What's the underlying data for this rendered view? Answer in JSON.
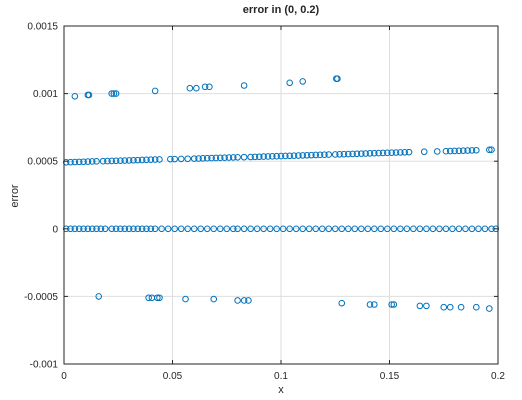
{
  "chart_data": {
    "type": "scatter",
    "title": "error in (0, 0.2)",
    "xlabel": "x",
    "ylabel": "error",
    "xlim": [
      0,
      0.2
    ],
    "ylim": [
      -0.001,
      0.0015
    ],
    "xticks": [
      "0",
      "0.05",
      "0.1",
      "0.15",
      "0.2"
    ],
    "yticks": [
      "-0.001",
      "-0.0005",
      "0",
      "0.0005",
      "0.001",
      "0.0015"
    ],
    "grid": true,
    "marker": "open-circle",
    "marker_color": "#0072BD",
    "series": [
      {
        "points": [
          [
            0.005,
            0.00098
          ],
          [
            0.011,
            0.00099
          ],
          [
            0.0115,
            0.00099
          ],
          [
            0.022,
            0.001
          ],
          [
            0.023,
            0.001
          ],
          [
            0.024,
            0.001
          ],
          [
            0.042,
            0.00102
          ],
          [
            0.058,
            0.00104
          ],
          [
            0.061,
            0.00104
          ],
          [
            0.065,
            0.00105
          ],
          [
            0.067,
            0.00105
          ],
          [
            0.083,
            0.00106
          ],
          [
            0.104,
            0.00108
          ],
          [
            0.11,
            0.00109
          ],
          [
            0.1255,
            0.00111
          ],
          [
            0.126,
            0.00111
          ],
          [
            0.001,
            0.000492
          ],
          [
            0.003,
            0.000493
          ],
          [
            0.005,
            0.000494
          ],
          [
            0.007,
            0.000495
          ],
          [
            0.009,
            0.000496
          ],
          [
            0.011,
            0.000497
          ],
          [
            0.013,
            0.000498
          ],
          [
            0.015,
            0.000499
          ],
          [
            0.018,
            0.0005
          ],
          [
            0.02,
            0.000501
          ],
          [
            0.022,
            0.000502
          ],
          [
            0.024,
            0.000503
          ],
          [
            0.026,
            0.000504
          ],
          [
            0.028,
            0.000505
          ],
          [
            0.03,
            0.000506
          ],
          [
            0.032,
            0.000507
          ],
          [
            0.034,
            0.000508
          ],
          [
            0.036,
            0.000509
          ],
          [
            0.038,
            0.00051
          ],
          [
            0.04,
            0.000511
          ],
          [
            0.042,
            0.000512
          ],
          [
            0.044,
            0.000513
          ],
          [
            0.049,
            0.000515
          ],
          [
            0.051,
            0.000516
          ],
          [
            0.054,
            0.000517
          ],
          [
            0.057,
            0.000518
          ],
          [
            0.06,
            0.000519
          ],
          [
            0.062,
            0.00052
          ],
          [
            0.064,
            0.000521
          ],
          [
            0.066,
            0.000522
          ],
          [
            0.068,
            0.000523
          ],
          [
            0.07,
            0.000524
          ],
          [
            0.072,
            0.000525
          ],
          [
            0.074,
            0.000526
          ],
          [
            0.076,
            0.000527
          ],
          [
            0.078,
            0.000528
          ],
          [
            0.08,
            0.000529
          ],
          [
            0.083,
            0.00053
          ],
          [
            0.086,
            0.000531
          ],
          [
            0.088,
            0.000532
          ],
          [
            0.09,
            0.000533
          ],
          [
            0.092,
            0.000534
          ],
          [
            0.094,
            0.000535
          ],
          [
            0.096,
            0.000536
          ],
          [
            0.098,
            0.000537
          ],
          [
            0.1,
            0.000538
          ],
          [
            0.102,
            0.000539
          ],
          [
            0.104,
            0.00054
          ],
          [
            0.106,
            0.000541
          ],
          [
            0.108,
            0.000542
          ],
          [
            0.11,
            0.000543
          ],
          [
            0.112,
            0.000544
          ],
          [
            0.114,
            0.000545
          ],
          [
            0.116,
            0.000546
          ],
          [
            0.118,
            0.000547
          ],
          [
            0.12,
            0.000548
          ],
          [
            0.122,
            0.000549
          ],
          [
            0.125,
            0.00055
          ],
          [
            0.127,
            0.000551
          ],
          [
            0.129,
            0.000552
          ],
          [
            0.131,
            0.000553
          ],
          [
            0.133,
            0.000554
          ],
          [
            0.135,
            0.000555
          ],
          [
            0.137,
            0.000556
          ],
          [
            0.139,
            0.000557
          ],
          [
            0.141,
            0.000558
          ],
          [
            0.143,
            0.000559
          ],
          [
            0.145,
            0.00056
          ],
          [
            0.147,
            0.000561
          ],
          [
            0.149,
            0.000562
          ],
          [
            0.151,
            0.000563
          ],
          [
            0.153,
            0.000564
          ],
          [
            0.155,
            0.000565
          ],
          [
            0.157,
            0.000566
          ],
          [
            0.159,
            0.000567
          ],
          [
            0.166,
            0.00057
          ],
          [
            0.172,
            0.000572
          ],
          [
            0.176,
            0.000574
          ],
          [
            0.178,
            0.000575
          ],
          [
            0.18,
            0.000576
          ],
          [
            0.182,
            0.000577
          ],
          [
            0.184,
            0.000578
          ],
          [
            0.186,
            0.000579
          ],
          [
            0.188,
            0.00058
          ],
          [
            0.19,
            0.000581
          ],
          [
            0.196,
            0.000584
          ],
          [
            0.197,
            0.000585
          ],
          [
            0.001,
            0
          ],
          [
            0.003,
            0
          ],
          [
            0.005,
            0
          ],
          [
            0.007,
            0
          ],
          [
            0.009,
            0
          ],
          [
            0.011,
            0
          ],
          [
            0.013,
            0
          ],
          [
            0.015,
            0
          ],
          [
            0.017,
            0
          ],
          [
            0.019,
            0
          ],
          [
            0.022,
            0
          ],
          [
            0.024,
            0
          ],
          [
            0.026,
            0
          ],
          [
            0.028,
            0
          ],
          [
            0.03,
            0
          ],
          [
            0.032,
            0
          ],
          [
            0.034,
            0
          ],
          [
            0.036,
            0
          ],
          [
            0.038,
            0
          ],
          [
            0.04,
            0
          ],
          [
            0.042,
            0
          ],
          [
            0.045,
            0
          ],
          [
            0.048,
            0
          ],
          [
            0.051,
            0
          ],
          [
            0.054,
            0
          ],
          [
            0.057,
            0
          ],
          [
            0.06,
            0
          ],
          [
            0.063,
            0
          ],
          [
            0.066,
            0
          ],
          [
            0.069,
            0
          ],
          [
            0.072,
            0
          ],
          [
            0.075,
            0
          ],
          [
            0.078,
            0
          ],
          [
            0.08,
            0
          ],
          [
            0.083,
            0
          ],
          [
            0.086,
            0
          ],
          [
            0.089,
            0
          ],
          [
            0.092,
            0
          ],
          [
            0.095,
            0
          ],
          [
            0.098,
            0
          ],
          [
            0.101,
            0
          ],
          [
            0.104,
            0
          ],
          [
            0.107,
            0
          ],
          [
            0.11,
            0
          ],
          [
            0.113,
            0
          ],
          [
            0.116,
            0
          ],
          [
            0.119,
            0
          ],
          [
            0.122,
            0
          ],
          [
            0.125,
            0
          ],
          [
            0.128,
            0
          ],
          [
            0.131,
            0
          ],
          [
            0.134,
            0
          ],
          [
            0.137,
            0
          ],
          [
            0.14,
            0
          ],
          [
            0.143,
            0
          ],
          [
            0.146,
            0
          ],
          [
            0.149,
            0
          ],
          [
            0.152,
            0
          ],
          [
            0.155,
            0
          ],
          [
            0.158,
            0
          ],
          [
            0.161,
            0
          ],
          [
            0.164,
            0
          ],
          [
            0.167,
            0
          ],
          [
            0.17,
            0
          ],
          [
            0.173,
            0
          ],
          [
            0.176,
            0
          ],
          [
            0.179,
            0
          ],
          [
            0.182,
            0
          ],
          [
            0.185,
            0
          ],
          [
            0.188,
            0
          ],
          [
            0.191,
            0
          ],
          [
            0.194,
            0
          ],
          [
            0.197,
            0
          ],
          [
            0.199,
            0
          ],
          [
            0.016,
            -0.0005
          ],
          [
            0.039,
            -0.00051
          ],
          [
            0.0405,
            -0.00051
          ],
          [
            0.043,
            -0.00051
          ],
          [
            0.044,
            -0.00051
          ],
          [
            0.056,
            -0.00052
          ],
          [
            0.069,
            -0.00052
          ],
          [
            0.08,
            -0.00053
          ],
          [
            0.083,
            -0.00053
          ],
          [
            0.085,
            -0.00053
          ],
          [
            0.128,
            -0.00055
          ],
          [
            0.141,
            -0.00056
          ],
          [
            0.143,
            -0.00056
          ],
          [
            0.151,
            -0.00056
          ],
          [
            0.152,
            -0.00056
          ],
          [
            0.164,
            -0.00057
          ],
          [
            0.167,
            -0.00057
          ],
          [
            0.175,
            -0.00058
          ],
          [
            0.178,
            -0.00058
          ],
          [
            0.183,
            -0.00058
          ],
          [
            0.19,
            -0.00058
          ],
          [
            0.196,
            -0.00059
          ]
        ]
      }
    ]
  }
}
